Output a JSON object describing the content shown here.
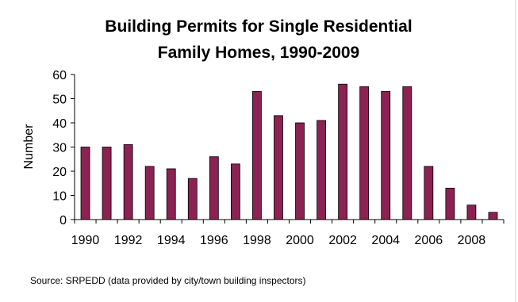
{
  "chart_data": {
    "type": "bar",
    "title_lines": [
      "Building Permits for Single Residential",
      "Family Homes, 1990-2009"
    ],
    "xlabel": "",
    "ylabel": "Number",
    "ylim": [
      0,
      60
    ],
    "yticks": [
      0,
      10,
      20,
      30,
      40,
      50,
      60
    ],
    "categories": [
      "1990",
      "1991",
      "1992",
      "1993",
      "1994",
      "1995",
      "1996",
      "1997",
      "1998",
      "1999",
      "2000",
      "2001",
      "2002",
      "2003",
      "2004",
      "2005",
      "2006",
      "2007",
      "2008",
      "2009"
    ],
    "xtick_labels": [
      "1990",
      "1992",
      "1994",
      "1996",
      "1998",
      "2000",
      "2002",
      "2004",
      "2006",
      "2008"
    ],
    "values": [
      30,
      30,
      31,
      22,
      21,
      17,
      26,
      23,
      53,
      43,
      40,
      41,
      56,
      55,
      53,
      55,
      22,
      13,
      6,
      3
    ],
    "grid": false,
    "legend": "none",
    "bar_color": "#8b2252",
    "source": "Source: SRPEDD (data provided by city/town building inspectors)"
  }
}
